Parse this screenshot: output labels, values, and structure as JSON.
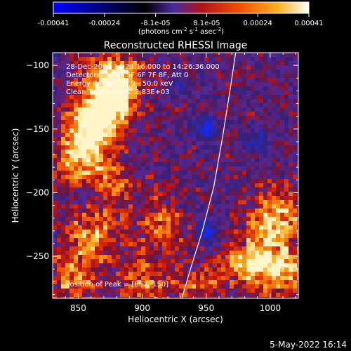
{
  "colorbar": {
    "ticks": [
      "-0.00041",
      "-0.00024",
      "-8.1e-05",
      "8.1e-05",
      "0.00024",
      "0.00041"
    ],
    "units": "(photons cm",
    "units_sup1": "-2",
    "units_mid": " s",
    "units_sup2": "-1",
    "units_mid2": " asec",
    "units_sup3": "-2",
    "units_end": ")",
    "colors": [
      "#0000ff",
      "#000000",
      "#5a2cae",
      "#c0141c",
      "#ff6a00",
      "#ffc020",
      "#ffffff"
    ]
  },
  "chart_data": {
    "type": "heatmap",
    "title": "Reconstructed RHESSI Image",
    "xlabel": "Heliocentric X (arcsec)",
    "ylabel": "Heliocentric Y (arcsec)",
    "xlim": [
      830,
      1022
    ],
    "ylim": [
      -283,
      -90
    ],
    "x_ticks": [
      850,
      900,
      950,
      1000
    ],
    "y_ticks": [
      -100,
      -150,
      -200,
      -250
    ],
    "y_tick_labels": [
      "−100",
      "−150",
      "−200",
      "−250"
    ],
    "x_tick_labels": [
      "850",
      "900",
      "950",
      "1000"
    ],
    "limb_curve": {
      "points": [
        [
          931,
          -283
        ],
        [
          938,
          -259
        ],
        [
          947,
          -230
        ],
        [
          956,
          -195
        ],
        [
          963,
          -155
        ],
        [
          969,
          -117
        ],
        [
          973,
          -90
        ]
      ]
    },
    "hot_regions": [
      {
        "x": 862,
        "y": -150,
        "strength": 1.0
      },
      {
        "x": 872,
        "y": -128,
        "strength": 0.9
      },
      {
        "x": 848,
        "y": -175,
        "strength": 0.7
      },
      {
        "x": 880,
        "y": -110,
        "strength": 0.75
      },
      {
        "x": 860,
        "y": -235,
        "strength": 0.7
      },
      {
        "x": 845,
        "y": -270,
        "strength": 0.6
      },
      {
        "x": 1005,
        "y": -220,
        "strength": 0.85
      },
      {
        "x": 985,
        "y": -255,
        "strength": 0.8
      },
      {
        "x": 1012,
        "y": -260,
        "strength": 0.75
      },
      {
        "x": 915,
        "y": -225,
        "strength": 0.55
      },
      {
        "x": 900,
        "y": -270,
        "strength": 0.5
      },
      {
        "x": 880,
        "y": -195,
        "strength": 0.45
      },
      {
        "x": 945,
        "y": -270,
        "strength": 0.45
      }
    ],
    "cool_regions": [
      {
        "x": 949,
        "y": -150,
        "strength": 1.0
      },
      {
        "x": 950,
        "y": -230,
        "strength": 0.9
      },
      {
        "x": 992,
        "y": -160,
        "strength": 0.6
      },
      {
        "x": 930,
        "y": -120,
        "strength": 0.5
      }
    ]
  },
  "annotations": {
    "line1": "28-Dec-2004 14:23:16.000 to 14:26:36.000",
    "line2": "Detectors: 3F 4F 5F 6F 7F 8F, Att 0",
    "line3": "Energy Range: 25.0 - 50.0 keV",
    "line4": "Clean     Total counts: 2.83E+03",
    "peak": "Position of Peak = [862,-150]"
  },
  "footer": {
    "date": "5-May-2022 16:14"
  }
}
